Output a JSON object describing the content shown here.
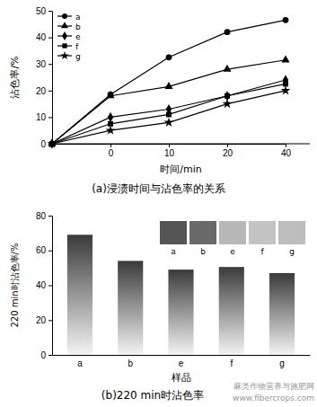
{
  "chart_data": [
    {
      "type": "line",
      "title": "(a)浸渍时间与沾色率的关系",
      "x_label": "时间/min",
      "y_label": "沾色率/%",
      "categories": [
        null,
        "0",
        "10",
        "20",
        "40"
      ],
      "ylim": [
        0,
        50
      ],
      "yticks": [
        0,
        10,
        20,
        30,
        40,
        50
      ],
      "legend": "upper left",
      "series": [
        {
          "name": "a",
          "color": "#000000",
          "marker": "circle",
          "values": [
            0,
            18.5,
            32.5,
            42,
            46.5
          ]
        },
        {
          "name": "b",
          "color": "#000000",
          "marker": "triangle",
          "values": [
            0,
            18,
            21.5,
            28,
            31.5
          ]
        },
        {
          "name": "e",
          "color": "#000000",
          "marker": "diamond",
          "values": [
            0,
            10,
            13,
            18,
            24
          ]
        },
        {
          "name": "f",
          "color": "#000000",
          "marker": "square",
          "values": [
            0,
            7.5,
            11,
            18,
            22.5
          ]
        },
        {
          "name": "g",
          "color": "#000000",
          "marker": "star",
          "values": [
            0,
            5,
            8,
            15,
            20
          ]
        }
      ]
    },
    {
      "type": "bar",
      "title": "(b)220 min时沾色率",
      "x_label": "样品",
      "y_label": "220 min时沾色率/%",
      "categories": [
        "a",
        "b",
        "e",
        "f",
        "g"
      ],
      "values": [
        69,
        54,
        49,
        50.5,
        47
      ],
      "color": "#3a3a3a",
      "ylim": [
        0,
        80
      ],
      "yticks": [
        0,
        20,
        40,
        60,
        80
      ],
      "inset_labels": [
        "a",
        "b",
        "e",
        "f",
        "g"
      ],
      "annotations": [
        "麻类作物营养与施肥网",
        "www.fibercrops.com"
      ]
    }
  ]
}
